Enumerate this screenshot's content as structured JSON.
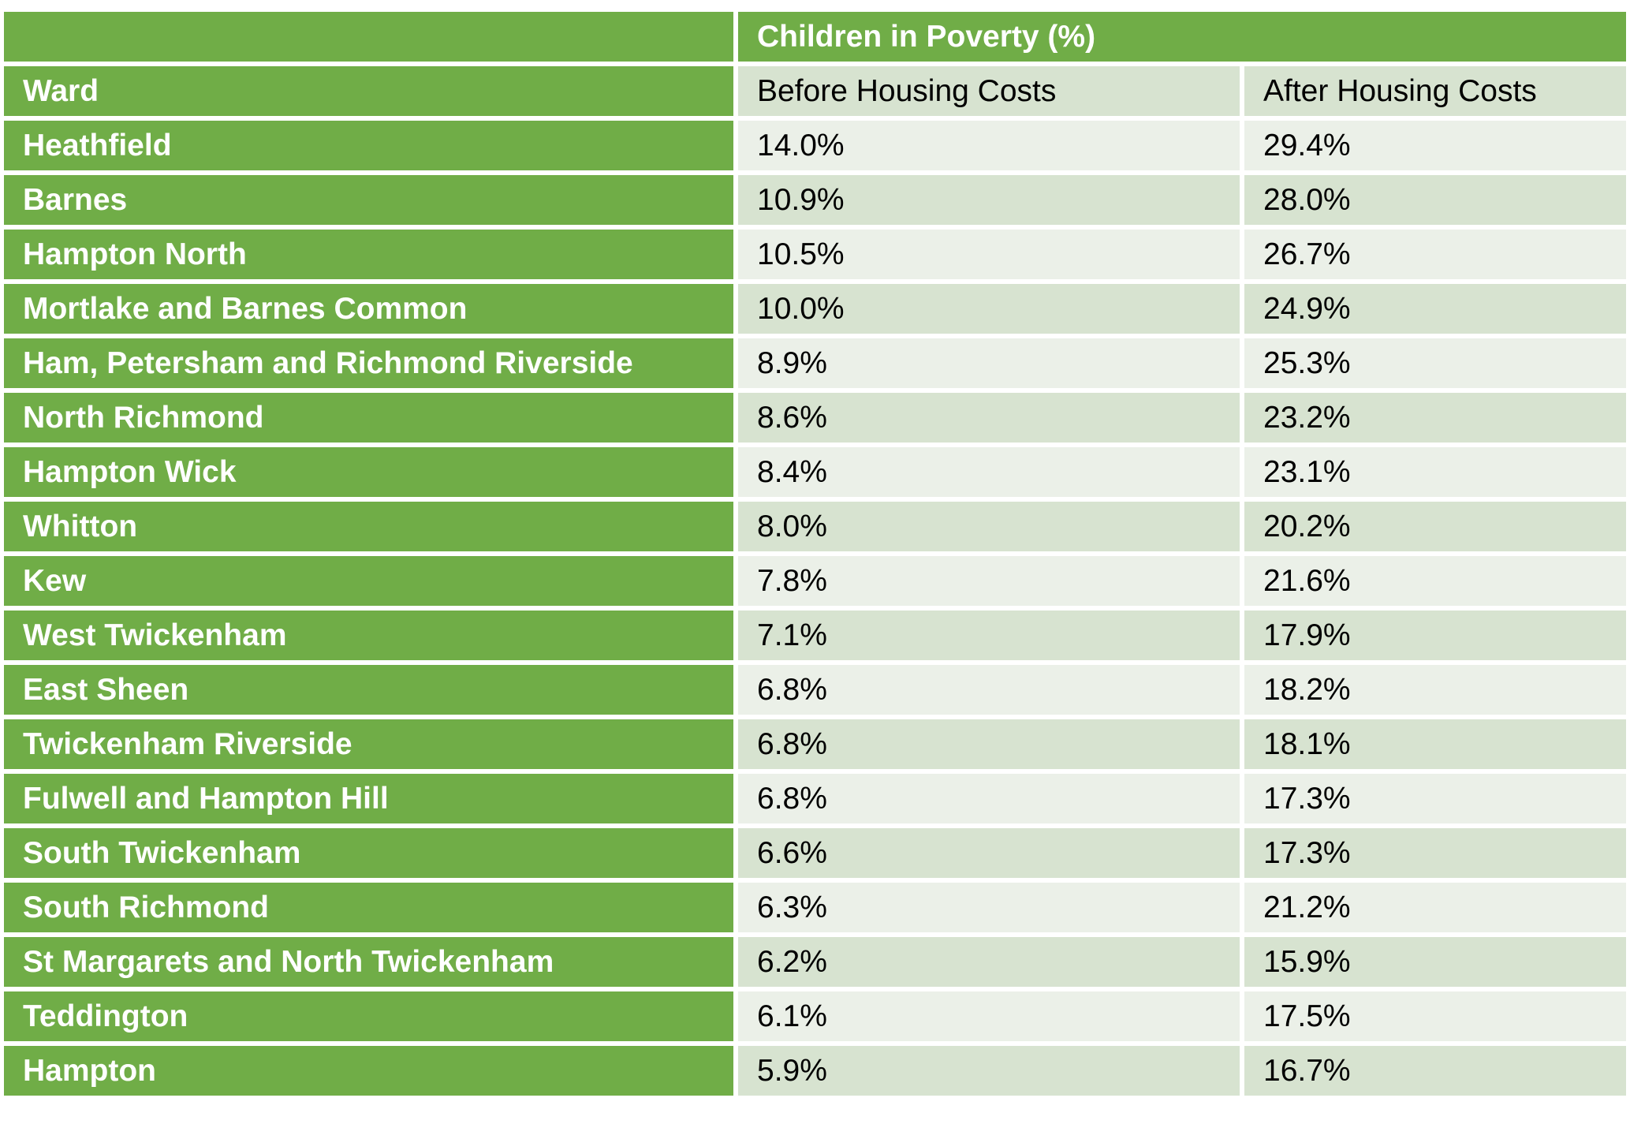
{
  "header": {
    "group_title": "Children in Poverty (%)",
    "col_ward": "Ward",
    "col_before": "Before Housing Costs",
    "col_after": "After Housing Costs"
  },
  "rows": [
    {
      "ward": "Heathfield",
      "before": "14.0%",
      "after": "29.4%"
    },
    {
      "ward": "Barnes",
      "before": "10.9%",
      "after": "28.0%"
    },
    {
      "ward": "Hampton North",
      "before": "10.5%",
      "after": "26.7%"
    },
    {
      "ward": "Mortlake and Barnes Common",
      "before": "10.0%",
      "after": "24.9%"
    },
    {
      "ward": "Ham, Petersham and Richmond Riverside",
      "before": "8.9%",
      "after": "25.3%"
    },
    {
      "ward": "North Richmond",
      "before": "8.6%",
      "after": "23.2%"
    },
    {
      "ward": "Hampton Wick",
      "before": "8.4%",
      "after": "23.1%"
    },
    {
      "ward": "Whitton",
      "before": "8.0%",
      "after": "20.2%"
    },
    {
      "ward": "Kew",
      "before": "7.8%",
      "after": "21.6%"
    },
    {
      "ward": "West Twickenham",
      "before": "7.1%",
      "after": "17.9%"
    },
    {
      "ward": "East Sheen",
      "before": "6.8%",
      "after": "18.2%"
    },
    {
      "ward": "Twickenham Riverside",
      "before": "6.8%",
      "after": "18.1%"
    },
    {
      "ward": "Fulwell and Hampton Hill",
      "before": "6.8%",
      "after": "17.3%"
    },
    {
      "ward": "South Twickenham",
      "before": "6.6%",
      "after": "17.3%"
    },
    {
      "ward": "South Richmond",
      "before": "6.3%",
      "after": "21.2%"
    },
    {
      "ward": "St Margarets and North Twickenham",
      "before": "6.2%",
      "after": "15.9%"
    },
    {
      "ward": "Teddington",
      "before": "6.1%",
      "after": "17.5%"
    },
    {
      "ward": "Hampton",
      "before": "5.9%",
      "after": "16.7%"
    }
  ],
  "colors": {
    "header_green": "#70ad47",
    "row_light": "#ebf0e8",
    "row_mid": "#d7e3d0"
  }
}
